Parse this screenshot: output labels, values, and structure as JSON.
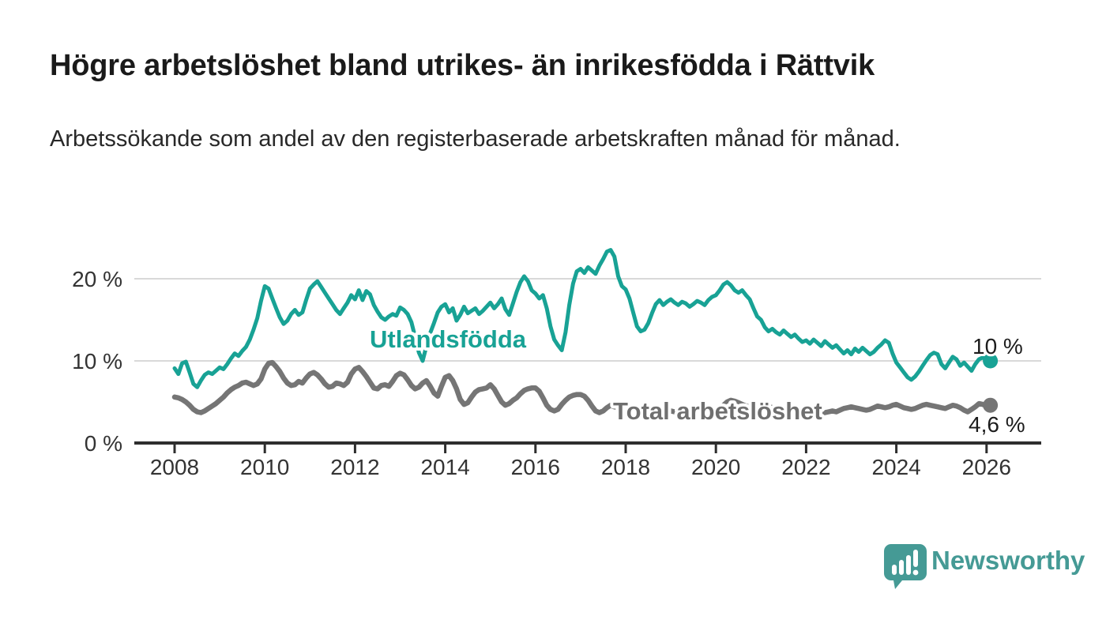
{
  "header": {
    "title": "Högre arbetslöshet bland utrikes- än inrikesfödda i Rättvik",
    "subtitle": "Arbetssökande som andel av den registerbaserade arbetskraften månad för månad."
  },
  "chart_data": {
    "type": "line",
    "title": "Högre arbetslöshet bland utrikes- än inrikesfödda i Rättvik",
    "subtitle": "Arbetssökande som andel av den registerbaserade arbetskraften månad för månad.",
    "x_start_year": 2008,
    "x_resolution": "monthly",
    "x_end": "2026-02",
    "xlim": [
      2007.1,
      2027.2
    ],
    "ylim": [
      0,
      24
    ],
    "grid": "horizontal-only",
    "x_ticks": [
      {
        "year": 2008,
        "label": "2008"
      },
      {
        "year": 2010,
        "label": "2010"
      },
      {
        "year": 2012,
        "label": "2012"
      },
      {
        "year": 2014,
        "label": "2014"
      },
      {
        "year": 2016,
        "label": "2016"
      },
      {
        "year": 2018,
        "label": "2018"
      },
      {
        "year": 2020,
        "label": "2020"
      },
      {
        "year": 2022,
        "label": "2022"
      },
      {
        "year": 2024,
        "label": "2024"
      },
      {
        "year": 2026,
        "label": "2026"
      }
    ],
    "y_ticks": [
      {
        "value": 0,
        "label": "0 %"
      },
      {
        "value": 10,
        "label": "10 %"
      },
      {
        "value": 20,
        "label": "20 %"
      }
    ],
    "series": [
      {
        "name": "utlandsfodda",
        "label": "Utlandsfödda",
        "color": "#18a295",
        "line_width": 5,
        "end_label": "10 %",
        "end_value": 10.0,
        "values": [
          9.1,
          8.4,
          9.7,
          9.9,
          8.6,
          7.2,
          6.8,
          7.6,
          8.3,
          8.6,
          8.4,
          8.8,
          9.2,
          9.0,
          9.6,
          10.3,
          10.9,
          10.6,
          11.2,
          11.7,
          12.6,
          13.8,
          15.2,
          17.3,
          19.1,
          18.8,
          17.6,
          16.4,
          15.3,
          14.5,
          14.9,
          15.7,
          16.2,
          15.6,
          15.9,
          17.4,
          18.8,
          19.3,
          19.7,
          19.0,
          18.3,
          17.6,
          16.9,
          16.2,
          15.7,
          16.4,
          17.1,
          18.0,
          17.5,
          18.6,
          17.4,
          18.5,
          18.1,
          16.8,
          16.0,
          15.3,
          15.0,
          15.4,
          15.7,
          15.5,
          16.5,
          16.2,
          15.7,
          14.7,
          12.9,
          11.0,
          10.0,
          11.8,
          13.4,
          14.6,
          15.9,
          16.6,
          16.9,
          15.9,
          16.4,
          14.9,
          15.6,
          16.6,
          15.8,
          16.1,
          16.4,
          15.7,
          16.1,
          16.6,
          17.1,
          16.4,
          16.9,
          17.6,
          16.3,
          15.6,
          17.0,
          18.4,
          19.6,
          20.3,
          19.7,
          18.6,
          18.2,
          17.6,
          18.0,
          16.4,
          14.2,
          12.6,
          11.9,
          11.3,
          13.5,
          16.8,
          19.4,
          20.9,
          21.2,
          20.7,
          21.4,
          21.0,
          20.6,
          21.6,
          22.4,
          23.3,
          23.5,
          22.7,
          20.3,
          19.1,
          18.7,
          17.6,
          15.9,
          14.2,
          13.6,
          13.8,
          14.6,
          15.8,
          16.9,
          17.4,
          16.8,
          17.2,
          17.5,
          17.1,
          16.8,
          17.2,
          17.0,
          16.6,
          16.9,
          17.3,
          17.1,
          16.8,
          17.4,
          17.8,
          18.0,
          18.6,
          19.3,
          19.6,
          19.2,
          18.6,
          18.3,
          18.6,
          18.0,
          17.5,
          16.4,
          15.4,
          15.0,
          14.1,
          13.6,
          13.9,
          13.5,
          13.2,
          13.7,
          13.3,
          12.9,
          13.2,
          12.7,
          12.3,
          12.5,
          12.1,
          12.6,
          12.2,
          11.8,
          12.4,
          12.0,
          11.6,
          11.9,
          11.4,
          10.9,
          11.3,
          10.8,
          11.5,
          11.1,
          11.6,
          11.2,
          10.8,
          11.1,
          11.6,
          12.0,
          12.5,
          12.2,
          10.9,
          9.8,
          9.2,
          8.6,
          8.0,
          7.7,
          8.1,
          8.7,
          9.4,
          10.1,
          10.7,
          11.0,
          10.8,
          9.6,
          9.1,
          9.8,
          10.5,
          10.2,
          9.4,
          9.8,
          9.3,
          8.8,
          9.6,
          10.2,
          10.4,
          10.1,
          10.0
        ]
      },
      {
        "name": "total-arbetsloshet",
        "label": "Total arbetslöshet",
        "color": "#757575",
        "line_width": 6.5,
        "end_label": "4,6 %",
        "end_value": 4.6,
        "values": [
          5.6,
          5.5,
          5.3,
          5.0,
          4.6,
          4.1,
          3.8,
          3.7,
          3.9,
          4.2,
          4.5,
          4.8,
          5.2,
          5.6,
          6.1,
          6.5,
          6.8,
          7.0,
          7.3,
          7.4,
          7.2,
          7.0,
          7.2,
          7.8,
          9.0,
          9.7,
          9.8,
          9.3,
          8.7,
          7.9,
          7.3,
          7.0,
          7.1,
          7.5,
          7.3,
          7.9,
          8.4,
          8.6,
          8.3,
          7.8,
          7.2,
          6.8,
          6.9,
          7.3,
          7.2,
          7.0,
          7.4,
          8.4,
          9.0,
          9.2,
          8.7,
          8.1,
          7.4,
          6.7,
          6.6,
          7.0,
          7.1,
          6.9,
          7.5,
          8.2,
          8.5,
          8.3,
          7.7,
          7.0,
          6.6,
          6.8,
          7.3,
          7.6,
          6.9,
          6.1,
          5.7,
          6.9,
          8.0,
          8.2,
          7.6,
          6.6,
          5.3,
          4.7,
          4.9,
          5.6,
          6.2,
          6.5,
          6.6,
          6.7,
          7.1,
          6.6,
          5.8,
          5.0,
          4.6,
          4.8,
          5.2,
          5.5,
          6.0,
          6.4,
          6.6,
          6.7,
          6.7,
          6.3,
          5.5,
          4.6,
          4.1,
          3.9,
          4.1,
          4.7,
          5.2,
          5.6,
          5.8,
          5.9,
          5.9,
          5.7,
          5.2,
          4.5,
          3.9,
          3.7,
          3.9,
          4.3,
          4.6,
          4.4,
          4.3,
          4.5,
          4.7,
          4.5,
          4.1,
          3.6,
          3.3,
          3.2,
          3.4,
          3.6,
          3.5,
          3.4,
          3.5,
          3.7,
          3.9,
          3.8,
          3.6,
          3.4,
          3.3,
          3.4,
          3.5,
          3.6,
          3.5,
          3.4,
          3.5,
          3.8,
          4.1,
          4.2,
          4.6,
          5.0,
          5.2,
          5.1,
          4.9,
          4.7,
          4.5,
          4.4,
          4.3,
          4.4,
          4.6,
          4.7,
          4.5,
          4.3,
          4.1,
          3.9,
          3.8,
          3.9,
          3.8,
          3.7,
          3.8,
          3.9,
          4.0,
          3.9,
          3.8,
          3.7,
          3.6,
          3.7,
          3.8,
          3.9,
          3.8,
          4.0,
          4.2,
          4.3,
          4.4,
          4.3,
          4.2,
          4.1,
          4.0,
          4.1,
          4.3,
          4.5,
          4.4,
          4.3,
          4.4,
          4.6,
          4.7,
          4.5,
          4.3,
          4.2,
          4.1,
          4.2,
          4.4,
          4.6,
          4.7,
          4.6,
          4.5,
          4.4,
          4.3,
          4.2,
          4.4,
          4.6,
          4.5,
          4.3,
          4.0,
          3.8,
          4.1,
          4.4,
          4.8,
          4.7,
          4.5,
          4.6
        ]
      }
    ],
    "annotations": [
      {
        "text": "Utlandsfödda",
        "color": "#18a295"
      },
      {
        "text": "Total arbetslöshet",
        "color": "#6f6f6f"
      },
      {
        "text": "10 %",
        "color": "#1c1c1c"
      },
      {
        "text": "4,6 %",
        "color": "#1c1c1c"
      }
    ],
    "legend_position": "inline-labels"
  },
  "branding": {
    "name": "Newsworthy",
    "color": "#459a95",
    "icon": "speech-bubble-bar-chart-icon"
  }
}
